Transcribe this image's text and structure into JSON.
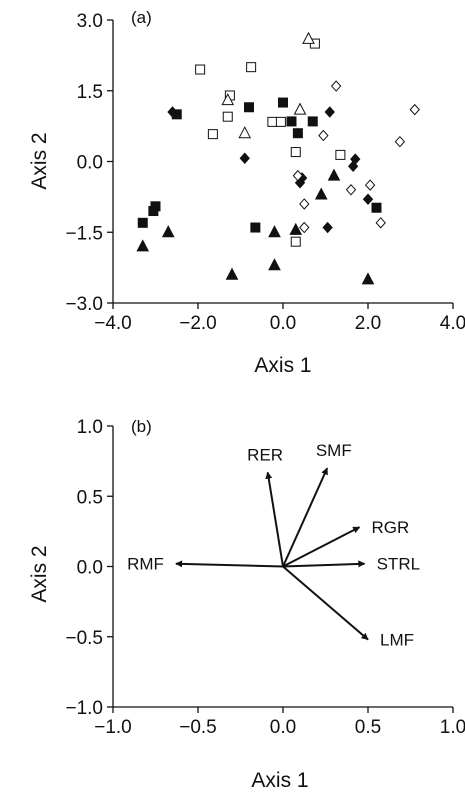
{
  "chart_data": [
    {
      "type": "scatter",
      "panel_label": "(a)",
      "xlabel": "Axis 1",
      "ylabel": "Axis 2",
      "xlim": [
        -4.0,
        4.0
      ],
      "ylim": [
        -3.0,
        3.0
      ],
      "x_ticks": [
        "−4.0",
        "−2.0",
        "0.0",
        "2.0",
        "4.0"
      ],
      "y_ticks": [
        "−3.0",
        "−1.5",
        "0.0",
        "1.5",
        "3.0"
      ],
      "grid": false,
      "series": [
        {
          "marker": "square-filled",
          "points": [
            [
              -2.5,
              1.0
            ],
            [
              -0.8,
              1.15
            ],
            [
              0.0,
              1.25
            ],
            [
              0.2,
              0.85
            ],
            [
              0.35,
              0.6
            ],
            [
              0.7,
              0.85
            ],
            [
              -3.0,
              -0.95
            ],
            [
              -3.05,
              -1.05
            ],
            [
              -3.3,
              -1.3
            ],
            [
              -0.65,
              -1.4
            ],
            [
              2.2,
              -0.98
            ]
          ]
        },
        {
          "marker": "square-open",
          "points": [
            [
              0.75,
              2.5
            ],
            [
              -1.95,
              1.95
            ],
            [
              -0.75,
              2.0
            ],
            [
              -1.25,
              1.4
            ],
            [
              -1.3,
              0.95
            ],
            [
              -1.65,
              0.58
            ],
            [
              -0.25,
              0.84
            ],
            [
              -0.05,
              0.84
            ],
            [
              0.3,
              0.2
            ],
            [
              1.35,
              0.14
            ],
            [
              0.3,
              -1.7
            ]
          ]
        },
        {
          "marker": "triangle-filled",
          "points": [
            [
              -3.3,
              -1.8
            ],
            [
              -2.7,
              -1.5
            ],
            [
              -1.2,
              -2.4
            ],
            [
              -0.2,
              -2.2
            ],
            [
              -0.2,
              -1.5
            ],
            [
              0.3,
              -1.45
            ],
            [
              0.9,
              -0.7
            ],
            [
              1.2,
              -0.3
            ],
            [
              2.0,
              -2.5
            ]
          ]
        },
        {
          "marker": "triangle-open",
          "points": [
            [
              0.6,
              2.6
            ],
            [
              -1.3,
              1.3
            ],
            [
              -0.9,
              0.6
            ],
            [
              0.4,
              1.1
            ]
          ]
        },
        {
          "marker": "diamond-filled",
          "points": [
            [
              -2.6,
              1.05
            ],
            [
              -0.9,
              0.07
            ],
            [
              0.45,
              -0.35
            ],
            [
              0.4,
              -0.45
            ],
            [
              1.1,
              1.05
            ],
            [
              1.05,
              -1.4
            ],
            [
              1.7,
              0.05
            ],
            [
              1.65,
              -0.1
            ],
            [
              2.0,
              -0.8
            ]
          ]
        },
        {
          "marker": "diamond-open",
          "points": [
            [
              1.25,
              1.6
            ],
            [
              3.1,
              1.1
            ],
            [
              2.75,
              0.42
            ],
            [
              0.95,
              0.55
            ],
            [
              0.35,
              -0.3
            ],
            [
              0.5,
              -0.9
            ],
            [
              0.5,
              -1.4
            ],
            [
              1.6,
              -0.6
            ],
            [
              2.05,
              -0.5
            ],
            [
              2.3,
              -1.3
            ]
          ]
        }
      ]
    },
    {
      "type": "biplot",
      "panel_label": "(b)",
      "xlabel": "Axis 1",
      "ylabel": "Axis 2",
      "xlim": [
        -1.0,
        1.0
      ],
      "ylim": [
        -1.0,
        1.0
      ],
      "x_ticks": [
        "−1.0",
        "−0.5",
        "0.0",
        "0.5",
        "1.0"
      ],
      "y_ticks": [
        "−1.0",
        "−0.5",
        "0.0",
        "0.5",
        "1.0"
      ],
      "grid": false,
      "vectors": [
        {
          "label": "RER",
          "x": -0.09,
          "y": 0.67
        },
        {
          "label": "SMF",
          "x": 0.26,
          "y": 0.7
        },
        {
          "label": "RGR",
          "x": 0.45,
          "y": 0.28
        },
        {
          "label": "STRL",
          "x": 0.48,
          "y": 0.02
        },
        {
          "label": "LMF",
          "x": 0.5,
          "y": -0.52
        },
        {
          "label": "RMF",
          "x": -0.63,
          "y": 0.02
        }
      ]
    }
  ]
}
